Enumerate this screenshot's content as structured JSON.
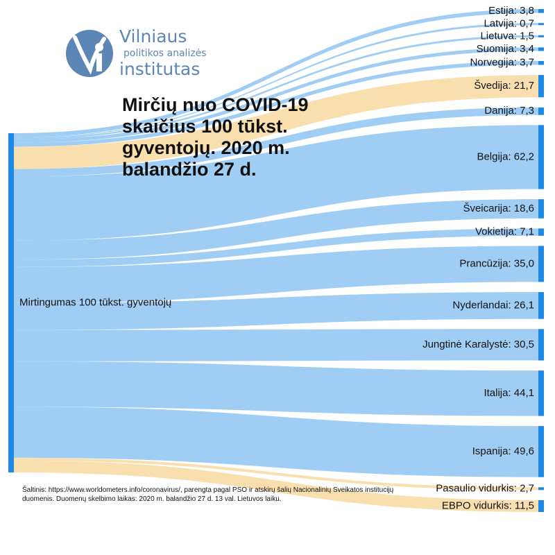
{
  "logo": {
    "line1": "Vilniaus",
    "line2": "politikos analizės",
    "line3": "institutas"
  },
  "title": "Mirčių nuo COVID-19 skaičius 100 tūkst. gyventojų. 2020 m. balandžio 27 d.",
  "source": "Šaltinis: https://www.worldometers.info/coronavirus/, parengta pagal PSO ir atskirų šalių Nacionalinių Sveikatos institucijų duomenis. Duomenų skelbimo laikas: 2020 m. balandžio 27 d.  13 val. Lietuvos laiku.",
  "colors": {
    "node": "#1e88e5",
    "flow_country": "#9fcdf4",
    "flow_benchmark": "#f9dfae"
  },
  "chart_data": {
    "type": "sankey",
    "source_node": "Mirtingumas 100 tūkst. gyventojų",
    "unit": "mirčių 100 tūkst. gyventojų",
    "nodes": [
      {
        "name": "Estija",
        "value": 3.8,
        "label": "Estija: 3,8",
        "group": "country"
      },
      {
        "name": "Latvija",
        "value": 0.7,
        "label": "Latvija: 0,7",
        "group": "country"
      },
      {
        "name": "Lietuva",
        "value": 1.5,
        "label": "Lietuva: 1,5",
        "group": "country"
      },
      {
        "name": "Suomija",
        "value": 3.4,
        "label": "Suomija: 3,4",
        "group": "country"
      },
      {
        "name": "Norvegija",
        "value": 3.7,
        "label": "Norvegija: 3,7",
        "group": "country"
      },
      {
        "name": "Švedija",
        "value": 21.7,
        "label": "Švedija: 21,7",
        "group": "benchmark"
      },
      {
        "name": "Danija",
        "value": 7.3,
        "label": "Danija: 7,3",
        "group": "country"
      },
      {
        "name": "Belgija",
        "value": 62.2,
        "label": "Belgija: 62,2",
        "group": "country"
      },
      {
        "name": "Šveicarija",
        "value": 18.6,
        "label": "Šveicarija: 18,6",
        "group": "country"
      },
      {
        "name": "Vokietija",
        "value": 7.1,
        "label": "Vokietija: 7,1",
        "group": "country"
      },
      {
        "name": "Prancūzija",
        "value": 35.0,
        "label": "Prancūzija: 35,0",
        "group": "country"
      },
      {
        "name": "Nyderlandai",
        "value": 26.1,
        "label": "Nyderlandai: 26,1",
        "group": "country"
      },
      {
        "name": "Jungtinė Karalystė",
        "value": 30.5,
        "label": "Jungtinė Karalystė: 30,5",
        "group": "country"
      },
      {
        "name": "Italija",
        "value": 44.1,
        "label": "Italija: 44,1",
        "group": "country"
      },
      {
        "name": "Ispanija",
        "value": 49.6,
        "label": "Ispanija: 49,6",
        "group": "country"
      },
      {
        "name": "Pasaulio vidurkis",
        "value": 2.7,
        "label": "Pasaulio vidurkis: 2,7",
        "group": "benchmark"
      },
      {
        "name": "EBPO vidurkis",
        "value": 11.5,
        "label": "EBPO vidurkis: 11,5",
        "group": "benchmark"
      }
    ]
  }
}
